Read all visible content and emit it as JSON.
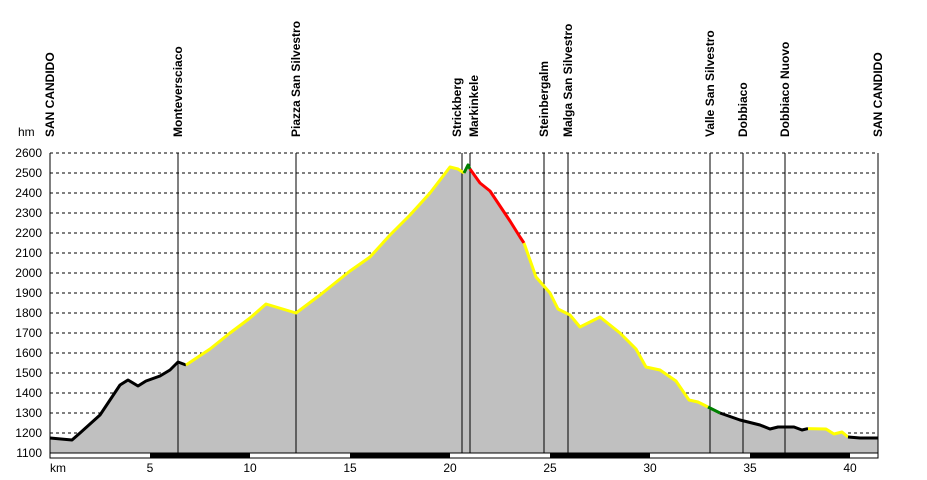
{
  "chart_data": {
    "type": "area",
    "title": "",
    "xlabel": "km",
    "ylabel": "hm",
    "xlim": [
      0,
      41.4
    ],
    "ylim": [
      1100,
      2600
    ],
    "grid": true,
    "x_ticks": [
      5,
      10,
      15,
      20,
      25,
      30,
      35,
      40
    ],
    "y_ticks": [
      1100,
      1200,
      1300,
      1400,
      1500,
      1600,
      1700,
      1800,
      1900,
      2000,
      2100,
      2200,
      2300,
      2400,
      2500,
      2600
    ],
    "fill_color": "#c0c0c0",
    "waypoints": [
      {
        "name": "SAN CANDIDO",
        "km": 0
      },
      {
        "name": "Monteversciaco",
        "km": 6.4
      },
      {
        "name": "Piazza San Silvestro",
        "km": 12.3
      },
      {
        "name": "Strickberg",
        "km": 20.6
      },
      {
        "name": "Markinkele",
        "km": 21.0
      },
      {
        "name": "Steinbergalm",
        "km": 24.7
      },
      {
        "name": "Malga San Silvestro",
        "km": 25.9
      },
      {
        "name": "Valle San Silvestro",
        "km": 33.0
      },
      {
        "name": "Dobbiaco",
        "km": 34.65
      },
      {
        "name": "Dobbiaco Nuovo",
        "km": 36.75
      },
      {
        "name": "SAN CANDIDO",
        "km": 41.4
      }
    ],
    "series": [
      {
        "name": "segment-1",
        "color": "#000000",
        "points": [
          [
            0,
            1175
          ],
          [
            1.1,
            1165
          ],
          [
            1.5,
            1200
          ],
          [
            2.5,
            1290
          ],
          [
            3.5,
            1440
          ],
          [
            3.9,
            1465
          ],
          [
            4.4,
            1435
          ],
          [
            4.8,
            1460
          ],
          [
            5.5,
            1485
          ],
          [
            6.0,
            1515
          ],
          [
            6.4,
            1555
          ],
          [
            6.8,
            1540
          ]
        ]
      },
      {
        "name": "segment-2",
        "color": "#ffff00",
        "points": [
          [
            6.8,
            1540
          ],
          [
            8.0,
            1620
          ],
          [
            9.0,
            1700
          ],
          [
            10.0,
            1775
          ],
          [
            10.8,
            1845
          ],
          [
            12.3,
            1800
          ],
          [
            13.5,
            1890
          ],
          [
            15,
            2010
          ],
          [
            16,
            2080
          ],
          [
            17,
            2190
          ],
          [
            18,
            2290
          ],
          [
            19,
            2400
          ],
          [
            20,
            2530
          ],
          [
            20.4,
            2520
          ],
          [
            20.7,
            2500
          ]
        ]
      },
      {
        "name": "segment-3",
        "color": "#008000",
        "points": [
          [
            20.7,
            2500
          ],
          [
            20.9,
            2540
          ],
          [
            21.0,
            2520
          ]
        ]
      },
      {
        "name": "segment-4",
        "color": "#ff0000",
        "points": [
          [
            21.0,
            2520
          ],
          [
            21.5,
            2450
          ],
          [
            22.0,
            2410
          ],
          [
            23.0,
            2260
          ],
          [
            23.5,
            2180
          ],
          [
            23.7,
            2150
          ]
        ]
      },
      {
        "name": "segment-5",
        "color": "#ffff00",
        "points": [
          [
            23.7,
            2150
          ],
          [
            24.3,
            1980
          ],
          [
            25.0,
            1900
          ],
          [
            25.4,
            1820
          ],
          [
            26.0,
            1790
          ],
          [
            26.5,
            1730
          ],
          [
            27.5,
            1780
          ],
          [
            28.5,
            1700
          ],
          [
            29.3,
            1620
          ],
          [
            29.8,
            1530
          ],
          [
            30.5,
            1515
          ],
          [
            31.3,
            1460
          ],
          [
            31.95,
            1365
          ],
          [
            32.4,
            1355
          ],
          [
            32.9,
            1330
          ]
        ]
      },
      {
        "name": "segment-6",
        "color": "#008000",
        "points": [
          [
            32.9,
            1330
          ],
          [
            33.5,
            1300
          ]
        ]
      },
      {
        "name": "segment-7",
        "color": "#000000",
        "points": [
          [
            33.5,
            1300
          ],
          [
            34.5,
            1265
          ],
          [
            35.5,
            1240
          ],
          [
            36.0,
            1220
          ],
          [
            36.4,
            1230
          ],
          [
            37.2,
            1230
          ],
          [
            37.6,
            1215
          ],
          [
            37.9,
            1222
          ]
        ]
      },
      {
        "name": "segment-8",
        "color": "#ffff00",
        "points": [
          [
            37.9,
            1222
          ],
          [
            38.8,
            1220
          ],
          [
            39.2,
            1195
          ],
          [
            39.6,
            1205
          ],
          [
            39.9,
            1180
          ]
        ]
      },
      {
        "name": "segment-9",
        "color": "#000000",
        "points": [
          [
            39.9,
            1180
          ],
          [
            40.5,
            1175
          ],
          [
            41.4,
            1175
          ]
        ]
      }
    ]
  }
}
